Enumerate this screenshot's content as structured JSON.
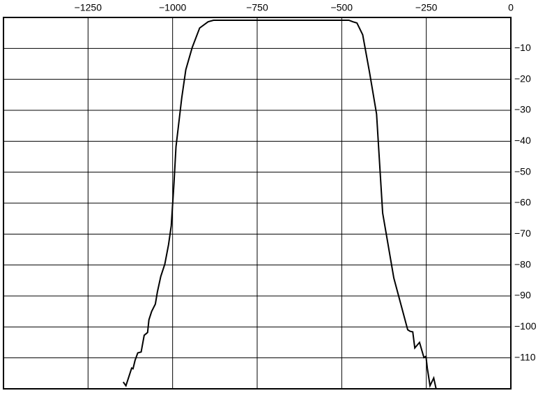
{
  "chart_data": {
    "type": "line",
    "x": [
      -1146,
      -1138,
      -1121,
      -1117,
      -1111,
      -1103,
      -1093,
      -1084,
      -1074,
      -1070,
      -1062,
      -1051,
      -1045,
      -1035,
      -1023,
      -1012,
      -1004,
      -996,
      -990,
      -973,
      -961,
      -942,
      -920,
      -895,
      -879,
      -479,
      -467,
      -455,
      -438,
      -418,
      -397,
      -379,
      -346,
      -305,
      -298,
      -290,
      -284,
      -270,
      -257,
      -251,
      -247,
      -239,
      -228,
      -220
    ],
    "series": [
      {
        "color": "#000000",
        "values": [
          -117.8,
          -119.0,
          -113.3,
          -113.5,
          -110.8,
          -108.4,
          -108.1,
          -102.7,
          -101.8,
          -97.7,
          -95.0,
          -92.6,
          -88.7,
          -83.7,
          -79.7,
          -73.4,
          -67.3,
          -53.7,
          -41.8,
          -26.0,
          -16.9,
          -9.7,
          -3.4,
          -1.4,
          -0.9,
          -0.9,
          -1.4,
          -1.8,
          -5.6,
          -17.6,
          -31.2,
          -63.2,
          -84.2,
          -100.9,
          -101.4,
          -101.6,
          -106.8,
          -105.0,
          -109.9,
          -109.5,
          -113.3,
          -119.0,
          -116.5,
          -120.5
        ]
      }
    ],
    "xlim": [
      -1500,
      0
    ],
    "xticks": [
      {
        "value": -1250,
        "label": "−1250"
      },
      {
        "value": -1000,
        "label": "−1000"
      },
      {
        "value": -750,
        "label": "−750"
      },
      {
        "value": -500,
        "label": "−500"
      },
      {
        "value": -250,
        "label": "−250"
      },
      0
    ],
    "ylim": [
      -120,
      0
    ],
    "yticks": [
      {
        "value": -10,
        "label": "−10"
      },
      {
        "value": -20,
        "label": "−20"
      },
      {
        "value": -30,
        "label": "−30"
      },
      {
        "value": -40,
        "label": "−40"
      },
      {
        "value": -50,
        "label": "−50"
      },
      {
        "value": -60,
        "label": "−60"
      },
      {
        "value": -70,
        "label": "−70"
      },
      {
        "value": -80,
        "label": "−80"
      },
      {
        "value": -90,
        "label": "−90"
      },
      {
        "value": -100,
        "label": "−100"
      },
      {
        "value": -110,
        "label": "−110"
      }
    ],
    "grid": true
  }
}
